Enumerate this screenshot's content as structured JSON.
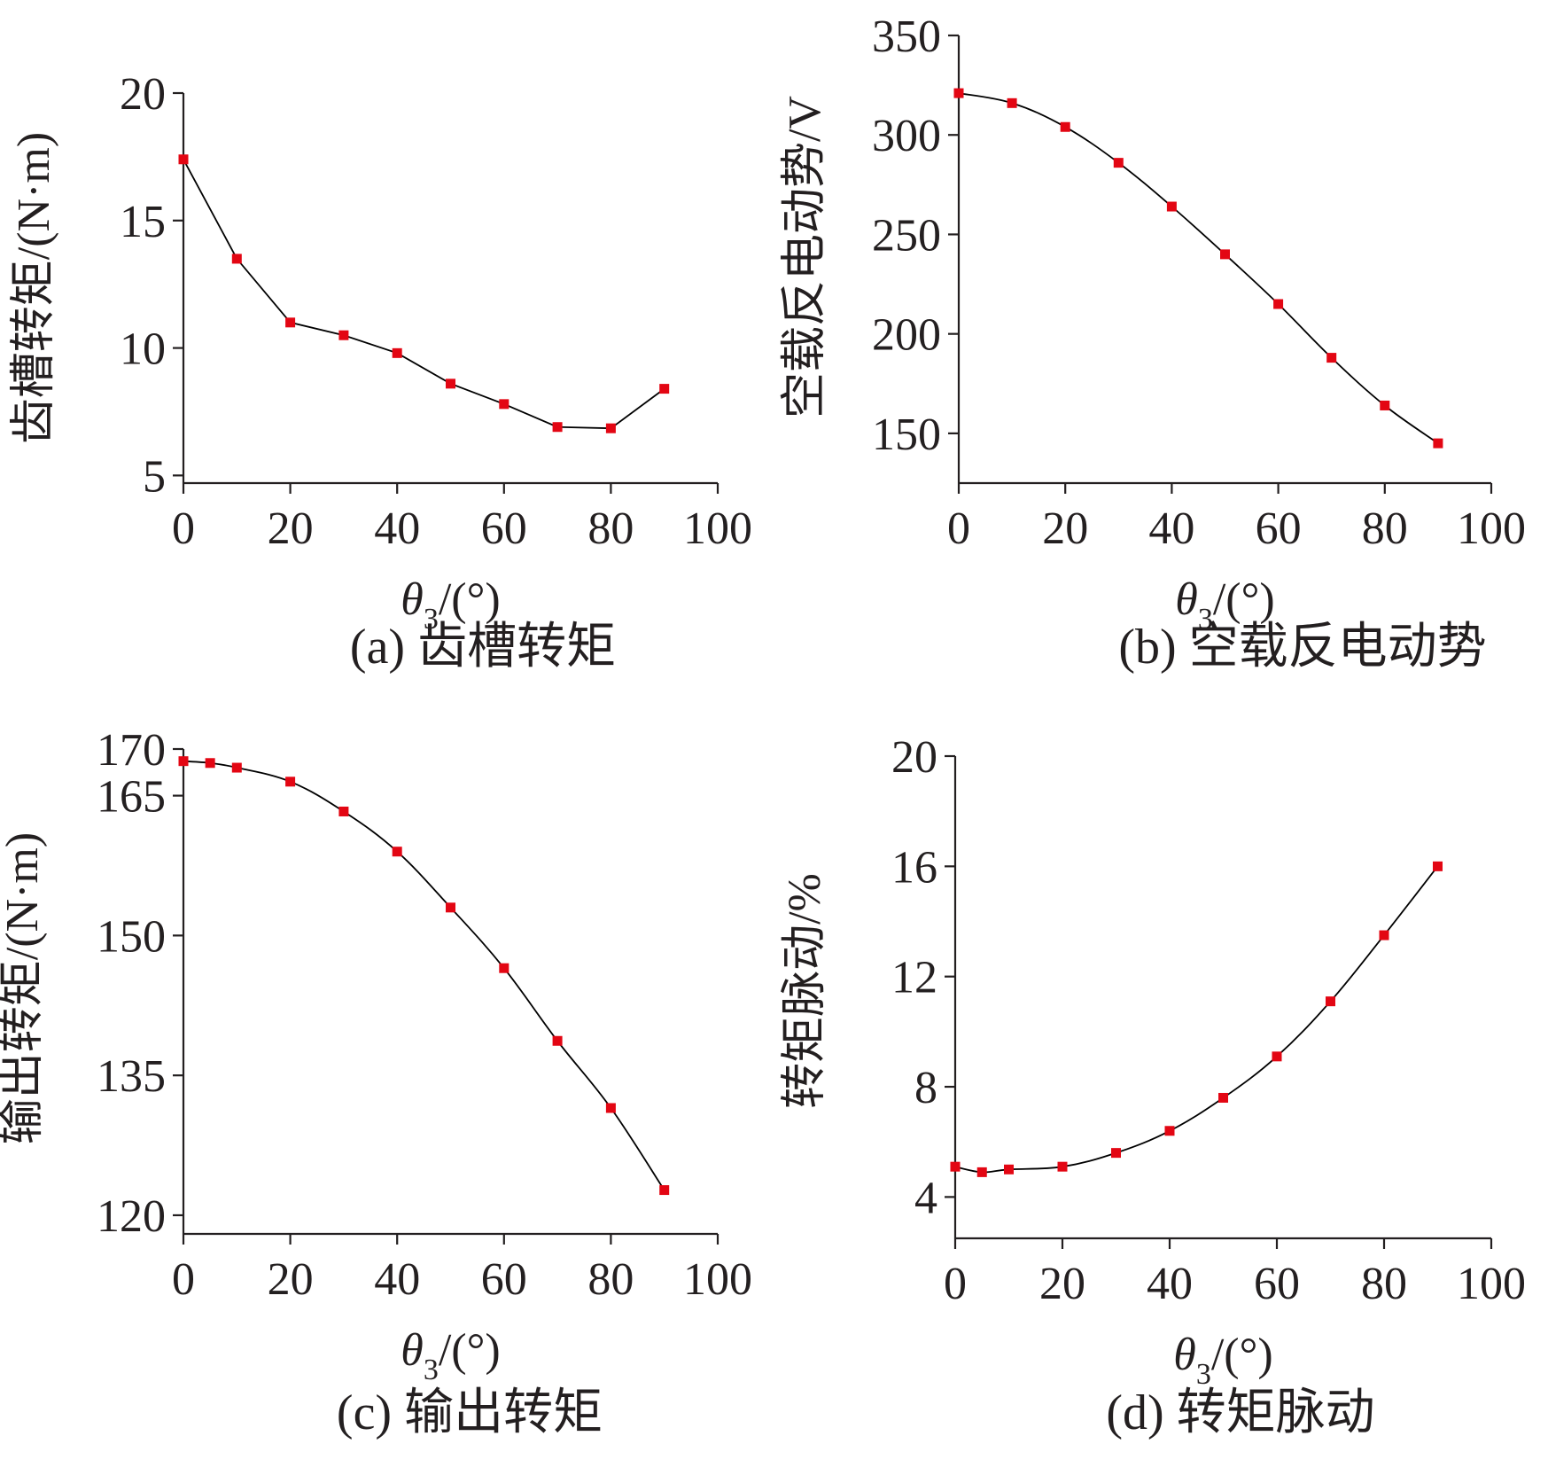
{
  "colors": {
    "axis": "#231f20",
    "line": "#000000",
    "marker": "#e30613",
    "background": "#ffffff"
  },
  "chart_data": [
    {
      "type": "line",
      "caption": "(a) 齿槽转矩",
      "ylabel": "齿槽转矩/(N·m)",
      "xlabel": {
        "var": "θ",
        "sub": "3",
        "unit": "/(°)"
      },
      "xlim": [
        0,
        100
      ],
      "ylim": [
        4.7,
        20
      ],
      "xticks": [
        0,
        20,
        40,
        60,
        80,
        100
      ],
      "yticks": [
        5,
        10,
        15,
        20
      ],
      "xtick_labels": [
        "0",
        "20",
        "40",
        "60",
        "80",
        "100"
      ],
      "ytick_labels": [
        "5",
        "10",
        "15",
        "20"
      ],
      "grid": false,
      "marker": "square",
      "series": [
        {
          "x": [
            0,
            10,
            20,
            30,
            40,
            50,
            60,
            70,
            80,
            90
          ],
          "y": [
            17.4,
            13.5,
            11.0,
            10.5,
            9.8,
            8.6,
            7.8,
            6.9,
            6.85,
            8.4
          ]
        }
      ]
    },
    {
      "type": "line",
      "caption": "(b) 空载反电动势",
      "ylabel": "空载反电动势/V",
      "xlabel": {
        "var": "θ",
        "sub": "3",
        "unit": "/(°)"
      },
      "xlim": [
        0,
        100
      ],
      "ylim": [
        125,
        350
      ],
      "xticks": [
        0,
        20,
        40,
        60,
        80,
        100
      ],
      "yticks": [
        150,
        200,
        250,
        300,
        350
      ],
      "xtick_labels": [
        "0",
        "20",
        "40",
        "60",
        "80",
        "100"
      ],
      "ytick_labels": [
        "150",
        "200",
        "250",
        "300",
        "350"
      ],
      "grid": false,
      "marker": "square",
      "series": [
        {
          "x": [
            0,
            10,
            20,
            30,
            40,
            50,
            60,
            70,
            80,
            90
          ],
          "y": [
            321,
            316,
            304,
            286,
            264,
            240,
            215,
            188,
            164,
            145
          ]
        }
      ]
    },
    {
      "type": "line",
      "caption": "(c) 输出转矩",
      "ylabel": "输出转矩/(N·m)",
      "xlabel": {
        "var": "θ",
        "sub": "3",
        "unit": "/(°)"
      },
      "xlim": [
        0,
        100
      ],
      "ylim": [
        118,
        170
      ],
      "xticks": [
        0,
        20,
        40,
        60,
        80,
        100
      ],
      "yticks": [
        120,
        135,
        150,
        165,
        170
      ],
      "xtick_labels": [
        "0",
        "20",
        "40",
        "60",
        "80",
        "100"
      ],
      "ytick_labels": [
        "120",
        "135",
        "150",
        "165",
        "170"
      ],
      "grid": false,
      "marker": "square",
      "series": [
        {
          "x": [
            0,
            5,
            10,
            20,
            30,
            40,
            50,
            60,
            70,
            80,
            90
          ],
          "y": [
            168.7,
            168.5,
            168.0,
            166.5,
            163.3,
            159.0,
            153.0,
            146.5,
            138.7,
            131.5,
            122.7
          ]
        }
      ]
    },
    {
      "type": "line",
      "caption": "(d) 转矩脉动",
      "ylabel": "转矩脉动/%",
      "xlabel": {
        "var": "θ",
        "sub": "3",
        "unit": "/(°)"
      },
      "xlim": [
        0,
        100
      ],
      "ylim": [
        2.5,
        20
      ],
      "xticks": [
        0,
        20,
        40,
        60,
        80,
        100
      ],
      "yticks": [
        4,
        8,
        12,
        16,
        20
      ],
      "xtick_labels": [
        "0",
        "20",
        "40",
        "60",
        "80",
        "100"
      ],
      "ytick_labels": [
        "4",
        "8",
        "12",
        "16",
        "20"
      ],
      "grid": false,
      "marker": "square",
      "series": [
        {
          "x": [
            0,
            5,
            10,
            20,
            30,
            40,
            50,
            60,
            70,
            80,
            90
          ],
          "y": [
            5.1,
            4.9,
            5.0,
            5.1,
            5.6,
            6.4,
            7.6,
            9.1,
            11.1,
            13.5,
            16.0
          ]
        }
      ]
    }
  ]
}
